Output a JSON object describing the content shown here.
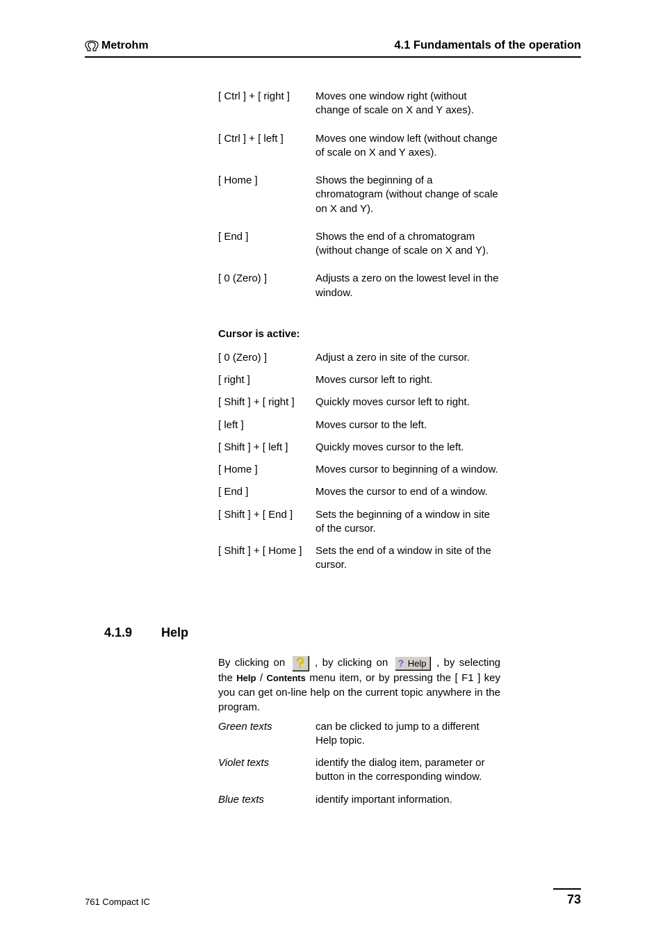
{
  "header": {
    "brand": "Metrohm",
    "section": "4.1 Fundamentals of the operation"
  },
  "shortcuts1": [
    {
      "key": "[ Ctrl ] + [ right ]",
      "desc": "Moves one window right (without change of scale on X and Y axes)."
    },
    {
      "key": "[ Ctrl ] + [ left ]",
      "desc": "Moves one window left (without change of scale on X and Y axes)."
    },
    {
      "key": "[ Home ]",
      "desc": "Shows the beginning of a chromatogram (without change of scale on X and Y)."
    },
    {
      "key": "[ End ]",
      "desc": "Shows the end of a chromatogram (without change of scale on X and Y)."
    },
    {
      "key": "[ 0  (Zero) ]",
      "desc": "Adjusts a zero on the lowest level in the window."
    }
  ],
  "cursor_heading": "Cursor is active:",
  "shortcuts2": [
    {
      "key": "[ 0  (Zero) ]",
      "desc": "Adjust a zero in site of the cursor."
    },
    {
      "key": "[ right ]",
      "desc": "Moves cursor left to right."
    },
    {
      "key": "[ Shift ] + [ right ]",
      "desc": "Quickly moves cursor left to right."
    },
    {
      "key": "[ left ]",
      "desc": "Moves cursor to the left."
    },
    {
      "key": "[ Shift ] + [ left ]",
      "desc": "Quickly moves cursor to the left."
    },
    {
      "key": "[ Home ]",
      "desc": "Moves cursor to beginning of a window."
    },
    {
      "key": "[ End ]",
      "desc": "Moves the cursor to end of a window."
    },
    {
      "key": "[ Shift ] + [ End ]",
      "desc": "Sets the beginning of a window in site of the cursor."
    },
    {
      "key": "[ Shift ] + [ Home ]",
      "desc": "Sets the end of a window in site of the cursor."
    }
  ],
  "help": {
    "num": "4.1.9",
    "title": "Help",
    "p1a": "By clicking on ",
    "p1b": " , by clicking on ",
    "p1c": " , by selecting the ",
    "p1d": "Help",
    "p1e": " / ",
    "p1f": "Contents",
    "p1g": " menu item, or by pressing the [ F1 ] key you can get on-line help on the current topic anywhere in the program.",
    "btn2_label": "Help",
    "rows": [
      {
        "term": "Green texts",
        "desc": "can be clicked to jump to a different Help topic."
      },
      {
        "term": "Violet texts",
        "desc": "identify the dialog item, parameter or button in the corresponding window."
      },
      {
        "term": "Blue texts",
        "desc": "identify important information."
      }
    ]
  },
  "footer": {
    "left": "761 Compact IC",
    "page": "73"
  }
}
